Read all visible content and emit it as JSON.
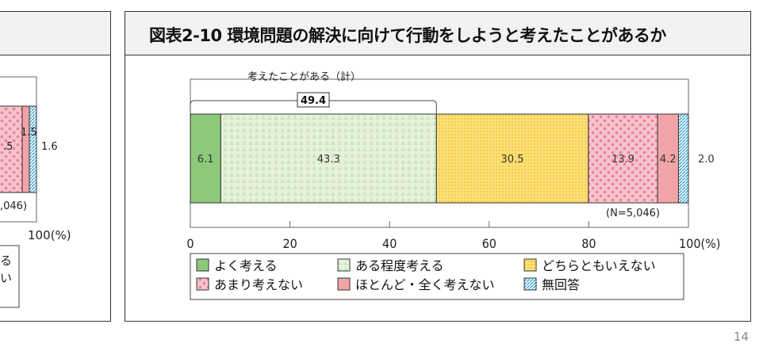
{
  "left_panel": {
    "labels": [
      "1.5",
      ".5",
      "1.6",
      ",046)",
      "100(%)",
      "る",
      "い"
    ]
  },
  "title": "図表2-10 環境問題の解決に向けて行動をしようと考えたことがあるか",
  "page_number": "14",
  "chart_data": {
    "type": "bar",
    "orientation": "horizontal-stacked",
    "categories": [
      "よく考える",
      "ある程度考える",
      "どちらともいえない",
      "あまり考えない",
      "ほとんど・全く考えない",
      "無回答"
    ],
    "values": [
      6.1,
      43.3,
      30.5,
      13.9,
      4.2,
      2.0
    ],
    "colors": [
      "#8cc97a",
      "#e6f2dc",
      "#fde27a",
      "#f6c3cc",
      "#f1a3a8",
      "#9fd8ef"
    ],
    "xlim": [
      0,
      100
    ],
    "xticks": [
      0,
      20,
      40,
      60,
      80,
      100
    ],
    "xtick_suffix": "(%)",
    "bracket_label": "考えたことがある（計）",
    "bracket_value": "49.4",
    "n_label": "(N=5,046)",
    "legend": "bottom"
  }
}
